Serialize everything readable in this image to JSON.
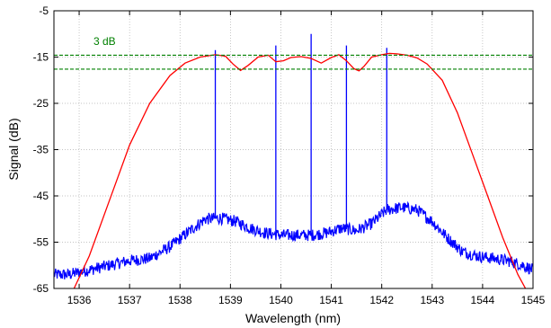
{
  "chart_data": {
    "type": "line",
    "title": "",
    "xlabel": "Wavelength (nm)",
    "ylabel": "Signal (dB)",
    "xlim": [
      1535.5,
      1545
    ],
    "ylim": [
      -65,
      -5
    ],
    "xticks": [
      1536,
      1537,
      1538,
      1539,
      1540,
      1541,
      1542,
      1543,
      1544,
      1545
    ],
    "yticks": [
      -65,
      -55,
      -45,
      -35,
      -25,
      -15,
      -5
    ],
    "grid": true,
    "annotations": [
      {
        "text": "3 dB",
        "color": "#008000"
      }
    ],
    "reference_lines": {
      "y": [
        -14.6,
        -17.6
      ],
      "color": "#008000",
      "style": "dashed"
    },
    "series": [
      {
        "color": "#0000ff",
        "mode": "spectrum",
        "floor": {
          "x": [
            1535.5,
            1535.8,
            1536.2,
            1536.6,
            1537.0,
            1537.4,
            1537.8,
            1538.2,
            1538.5,
            1538.8,
            1539.1,
            1539.4,
            1539.7,
            1540.0,
            1540.3,
            1540.6,
            1540.9,
            1541.2,
            1541.5,
            1541.8,
            1542.1,
            1542.4,
            1542.7,
            1543.0,
            1543.3,
            1543.6,
            1543.9,
            1544.2,
            1544.5,
            1544.8,
            1545.0
          ],
          "y": [
            -62.0,
            -62.0,
            -61.0,
            -60.0,
            -59.0,
            -58.5,
            -56.0,
            -52.5,
            -50.0,
            -49.8,
            -50.5,
            -52.0,
            -53.0,
            -53.5,
            -53.5,
            -53.5,
            -53.0,
            -52.0,
            -52.5,
            -51.0,
            -48.0,
            -47.5,
            -48.0,
            -50.5,
            -54.0,
            -57.0,
            -58.0,
            -58.5,
            -59.0,
            -60.0,
            -61.0
          ]
        },
        "lines": {
          "start": 1536.25,
          "end": 1544.75,
          "spacing": 0.08,
          "peak_y": [
            -59.0,
            -46.0,
            -34.0,
            -23.0,
            -16.0,
            -14.5,
            -17.0,
            -16.5,
            -15.0,
            -15.5,
            -15.5,
            -14.5,
            -16.5,
            -15.5,
            -16.0,
            -14.5,
            -17.5,
            -22.0,
            -31.0,
            -43.0,
            -56.0
          ],
          "peak_x": [
            1536.2,
            1536.6,
            1537.0,
            1537.4,
            1537.8,
            1538.6,
            1539.0,
            1539.3,
            1539.6,
            1540.0,
            1540.4,
            1540.6,
            1541.0,
            1541.3,
            1541.6,
            1542.1,
            1542.8,
            1543.1,
            1543.4,
            1543.8,
            1544.2
          ],
          "tall_spikes": [
            {
              "x": 1540.6,
              "y": -10.0
            },
            {
              "x": 1539.9,
              "y": -12.5
            },
            {
              "x": 1541.3,
              "y": -12.5
            },
            {
              "x": 1542.1,
              "y": -13.0
            },
            {
              "x": 1538.7,
              "y": -13.5
            }
          ]
        }
      },
      {
        "color": "#ff0000",
        "mode": "line",
        "x": [
          1535.9,
          1536.2,
          1536.6,
          1537.0,
          1537.4,
          1537.8,
          1538.1,
          1538.4,
          1538.7,
          1538.9,
          1539.05,
          1539.2,
          1539.35,
          1539.55,
          1539.75,
          1539.9,
          1540.05,
          1540.2,
          1540.4,
          1540.6,
          1540.8,
          1541.0,
          1541.15,
          1541.3,
          1541.45,
          1541.55,
          1541.65,
          1541.8,
          1542.0,
          1542.15,
          1542.3,
          1542.5,
          1542.7,
          1542.9,
          1543.2,
          1543.5,
          1543.8,
          1544.1,
          1544.4,
          1544.7,
          1545.0
        ],
        "y": [
          -65.0,
          -58.0,
          -46.0,
          -34.0,
          -25.0,
          -19.0,
          -16.3,
          -15.0,
          -14.5,
          -14.8,
          -16.5,
          -17.9,
          -16.8,
          -15.0,
          -14.6,
          -16.0,
          -15.8,
          -15.1,
          -14.9,
          -15.3,
          -16.3,
          -15.1,
          -14.5,
          -15.8,
          -17.5,
          -18.0,
          -17.0,
          -15.0,
          -14.5,
          -14.2,
          -14.3,
          -14.6,
          -15.2,
          -16.5,
          -20.0,
          -27.0,
          -36.0,
          -45.0,
          -54.0,
          -62.0,
          -68.0
        ]
      }
    ]
  }
}
